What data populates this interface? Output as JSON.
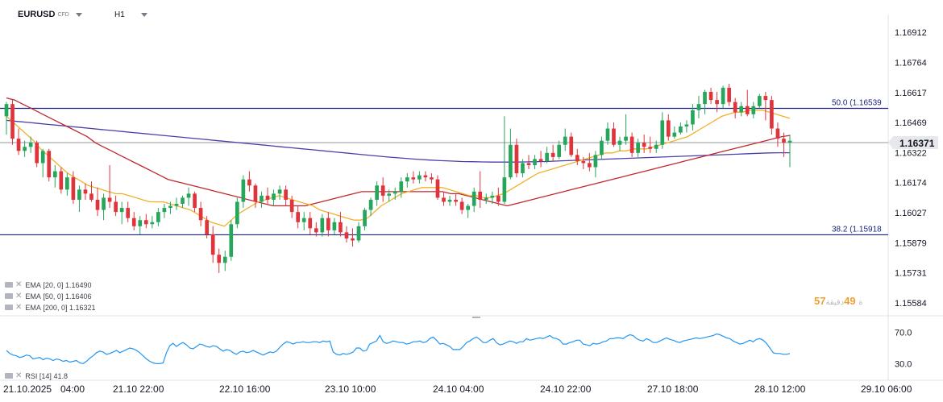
{
  "header": {
    "symbol": "EURUSD",
    "market": "CFD",
    "timeframe": "H1"
  },
  "indicators": [
    {
      "label": "EMA",
      "params": "[20, 0]",
      "value": "1.16490",
      "color": "#f2b02a"
    },
    {
      "label": "EMA",
      "params": "[50, 0]",
      "value": "1.16406",
      "color": "#c0282f"
    },
    {
      "label": "EMA",
      "params": "[200, 0]",
      "value": "1.16321",
      "color": "#4a3fa8"
    }
  ],
  "rsi": {
    "label": "RSI",
    "params": "[14]",
    "value": "41.8",
    "levels": [
      "70.0",
      "30.0"
    ],
    "color": "#2196f3",
    "values": [
      47,
      43,
      41,
      40,
      38,
      39,
      41,
      40,
      36,
      37,
      38,
      35,
      37,
      36,
      34,
      36,
      35,
      33,
      34,
      32,
      33,
      34,
      31,
      30,
      33,
      37,
      40,
      44,
      46,
      45,
      42,
      43,
      45,
      47,
      44,
      46,
      48,
      50,
      49,
      47,
      44,
      40,
      36,
      33,
      31,
      30,
      30,
      31,
      44,
      53,
      56,
      52,
      55,
      57,
      54,
      50,
      49,
      52,
      55,
      54,
      52,
      51,
      53,
      52,
      49,
      46,
      48,
      47,
      44,
      42,
      45,
      46,
      44,
      45,
      47,
      45,
      43,
      41,
      43,
      45,
      44,
      46,
      51,
      55,
      58,
      57,
      55,
      57,
      57,
      58,
      57,
      57,
      58,
      58,
      57,
      59,
      58,
      59,
      45,
      42,
      41,
      43,
      42,
      43,
      45,
      50,
      50,
      46,
      47,
      55,
      57,
      59,
      66,
      58,
      56,
      57,
      59,
      58,
      57,
      57,
      55,
      56,
      58,
      58,
      59,
      57,
      58,
      62,
      64,
      60,
      55,
      56,
      54,
      52,
      48,
      48,
      48,
      52,
      57,
      59,
      62,
      64,
      61,
      57,
      57,
      60,
      62,
      57,
      54,
      55,
      57,
      59,
      58,
      56,
      58,
      58,
      62,
      60,
      61,
      62,
      63,
      62,
      64,
      66,
      63,
      62,
      60,
      55,
      55,
      57,
      58,
      60,
      60,
      55,
      54,
      53,
      56,
      55,
      56,
      58,
      59,
      62,
      62,
      63,
      63,
      62,
      65,
      67,
      66,
      62,
      60,
      59,
      62,
      60,
      57,
      57,
      59,
      61,
      63,
      61,
      60,
      58,
      57,
      59,
      60,
      61,
      62,
      63,
      62,
      63,
      64,
      65,
      66,
      68,
      67,
      65,
      63,
      62,
      59,
      57,
      55,
      56,
      58,
      60,
      58,
      61,
      62,
      60,
      56,
      50,
      44,
      43,
      43,
      42,
      42,
      43
    ]
  },
  "price_scale": [
    "1.16912",
    "1.16764",
    "1.16617",
    "1.16469",
    "1.16322",
    "1.16174",
    "1.16027",
    "1.15879",
    "1.15731",
    "1.15584"
  ],
  "current_price": "1.16371",
  "fib_levels": [
    {
      "label": "50.0 (1.16539",
      "price": 1.16539
    },
    {
      "label": "38.2 (1.15918",
      "price": 1.15918
    }
  ],
  "session_text": {
    "prefix": "57",
    "mid": "ة",
    "minutes": "49",
    "suffix": "دقيقة"
  },
  "time_axis": [
    "21.10.2025",
    "04:00",
    "21.10 22:00",
    "22.10 16:00",
    "23.10 10:00",
    "24.10 04:00",
    "24.10 22:00",
    "27.10 18:00",
    "28.10 12:00",
    "29.10 06:00"
  ],
  "chart_data": {
    "type": "candlestick",
    "symbol": "EURUSD",
    "timeframe": "H1",
    "ylim": [
      1.1552,
      1.17
    ],
    "candles": [
      [
        1.165,
        1.1657,
        1.1641,
        1.1656
      ],
      [
        1.1656,
        1.1658,
        1.1636,
        1.1639
      ],
      [
        1.1639,
        1.1644,
        1.1631,
        1.1633
      ],
      [
        1.1633,
        1.1638,
        1.163,
        1.1635
      ],
      [
        1.1635,
        1.164,
        1.1632,
        1.1637
      ],
      [
        1.1637,
        1.1638,
        1.1625,
        1.1627
      ],
      [
        1.1627,
        1.1634,
        1.162,
        1.1633
      ],
      [
        1.1633,
        1.1634,
        1.1618,
        1.162
      ],
      [
        1.162,
        1.1626,
        1.1615,
        1.1623
      ],
      [
        1.1623,
        1.1625,
        1.1612,
        1.1614
      ],
      [
        1.1614,
        1.1622,
        1.1611,
        1.162
      ],
      [
        1.162,
        1.1623,
        1.1607,
        1.1609
      ],
      [
        1.1609,
        1.1616,
        1.1603,
        1.1614
      ],
      [
        1.1614,
        1.1617,
        1.1609,
        1.1612
      ],
      [
        1.1612,
        1.1618,
        1.1608,
        1.1609
      ],
      [
        1.1609,
        1.1615,
        1.1601,
        1.1604
      ],
      [
        1.1604,
        1.1612,
        1.1599,
        1.161
      ],
      [
        1.161,
        1.1626,
        1.1605,
        1.1608
      ],
      [
        1.1608,
        1.1611,
        1.1601,
        1.1603
      ],
      [
        1.1603,
        1.1608,
        1.1597,
        1.1605
      ],
      [
        1.1605,
        1.1608,
        1.1598,
        1.16
      ],
      [
        1.16,
        1.1603,
        1.1594,
        1.1596
      ],
      [
        1.1596,
        1.1601,
        1.1592,
        1.1599
      ],
      [
        1.1599,
        1.1602,
        1.1595,
        1.1597
      ],
      [
        1.1597,
        1.1601,
        1.1595,
        1.1598
      ],
      [
        1.1598,
        1.1605,
        1.1596,
        1.1603
      ],
      [
        1.1603,
        1.1607,
        1.16,
        1.1605
      ],
      [
        1.1605,
        1.1608,
        1.1602,
        1.1606
      ],
      [
        1.1606,
        1.161,
        1.1604,
        1.1607
      ],
      [
        1.1607,
        1.1611,
        1.1605,
        1.161
      ],
      [
        1.161,
        1.1615,
        1.1606,
        1.1612
      ],
      [
        1.1612,
        1.1613,
        1.1603,
        1.1605
      ],
      [
        1.1605,
        1.1608,
        1.1596,
        1.1599
      ],
      [
        1.1599,
        1.1601,
        1.159,
        1.1592
      ],
      [
        1.1592,
        1.1596,
        1.1578,
        1.1582
      ],
      [
        1.1582,
        1.1585,
        1.1573,
        1.1578
      ],
      [
        1.1578,
        1.1584,
        1.1574,
        1.1581
      ],
      [
        1.1581,
        1.1599,
        1.1579,
        1.1597
      ],
      [
        1.1597,
        1.161,
        1.1595,
        1.1608
      ],
      [
        1.1608,
        1.1621,
        1.1605,
        1.1619
      ],
      [
        1.1619,
        1.1623,
        1.1613,
        1.1616
      ],
      [
        1.1616,
        1.1617,
        1.1605,
        1.1608
      ],
      [
        1.1608,
        1.1613,
        1.1605,
        1.1611
      ],
      [
        1.1611,
        1.1615,
        1.1607,
        1.1609
      ],
      [
        1.1609,
        1.1614,
        1.1606,
        1.1612
      ],
      [
        1.1612,
        1.1616,
        1.1609,
        1.1614
      ],
      [
        1.1614,
        1.1616,
        1.1606,
        1.1609
      ],
      [
        1.1609,
        1.1611,
        1.16,
        1.1603
      ],
      [
        1.1603,
        1.1606,
        1.1595,
        1.1598
      ],
      [
        1.1598,
        1.1603,
        1.1594,
        1.16
      ],
      [
        1.16,
        1.1603,
        1.1592,
        1.1595
      ],
      [
        1.1595,
        1.1598,
        1.1591,
        1.1593
      ],
      [
        1.1593,
        1.1602,
        1.1591,
        1.16
      ],
      [
        1.16,
        1.1603,
        1.1591,
        1.1594
      ],
      [
        1.1594,
        1.16,
        1.1592,
        1.1598
      ],
      [
        1.1598,
        1.1603,
        1.1591,
        1.1593
      ],
      [
        1.1593,
        1.1596,
        1.1588,
        1.159
      ],
      [
        1.159,
        1.1595,
        1.1586,
        1.1589
      ],
      [
        1.1589,
        1.1598,
        1.1588,
        1.1596
      ],
      [
        1.1596,
        1.1605,
        1.1594,
        1.1604
      ],
      [
        1.1604,
        1.161,
        1.1601,
        1.1609
      ],
      [
        1.1609,
        1.1618,
        1.1606,
        1.1616
      ],
      [
        1.1616,
        1.162,
        1.1608,
        1.1611
      ],
      [
        1.1611,
        1.1614,
        1.1608,
        1.1612
      ],
      [
        1.1612,
        1.1615,
        1.1609,
        1.1613
      ],
      [
        1.1613,
        1.162,
        1.161,
        1.1618
      ],
      [
        1.1618,
        1.1622,
        1.1615,
        1.162
      ],
      [
        1.162,
        1.1623,
        1.1617,
        1.1619
      ],
      [
        1.1619,
        1.1623,
        1.1617,
        1.1621
      ],
      [
        1.1621,
        1.1623,
        1.1618,
        1.162
      ],
      [
        1.162,
        1.1622,
        1.1617,
        1.1619
      ],
      [
        1.1619,
        1.1621,
        1.1609,
        1.161
      ],
      [
        1.161,
        1.1613,
        1.1606,
        1.1608
      ],
      [
        1.1608,
        1.1611,
        1.1606,
        1.1609
      ],
      [
        1.1609,
        1.1612,
        1.1606,
        1.1608
      ],
      [
        1.1608,
        1.161,
        1.1602,
        1.1604
      ],
      [
        1.1604,
        1.1607,
        1.16,
        1.1606
      ],
      [
        1.1606,
        1.1615,
        1.1603,
        1.1613
      ],
      [
        1.1613,
        1.1623,
        1.1605,
        1.1609
      ],
      [
        1.1609,
        1.1612,
        1.1607,
        1.161
      ],
      [
        1.161,
        1.1613,
        1.1607,
        1.1611
      ],
      [
        1.1611,
        1.1615,
        1.1606,
        1.1608
      ],
      [
        1.1608,
        1.165,
        1.1607,
        1.162
      ],
      [
        1.162,
        1.1644,
        1.1619,
        1.1636
      ],
      [
        1.1636,
        1.1639,
        1.162,
        1.1622
      ],
      [
        1.1622,
        1.1629,
        1.162,
        1.1627
      ],
      [
        1.1627,
        1.1631,
        1.1624,
        1.1626
      ],
      [
        1.1626,
        1.1631,
        1.1624,
        1.1629
      ],
      [
        1.1629,
        1.1633,
        1.1625,
        1.1628
      ],
      [
        1.1628,
        1.1635,
        1.1627,
        1.1632
      ],
      [
        1.1632,
        1.1636,
        1.1628,
        1.163
      ],
      [
        1.163,
        1.1638,
        1.1629,
        1.1636
      ],
      [
        1.1636,
        1.1644,
        1.1633,
        1.164
      ],
      [
        1.164,
        1.1642,
        1.163,
        1.1631
      ],
      [
        1.1631,
        1.1634,
        1.1626,
        1.1628
      ],
      [
        1.1628,
        1.163,
        1.1624,
        1.1627
      ],
      [
        1.1627,
        1.1632,
        1.1623,
        1.1625
      ],
      [
        1.1625,
        1.1633,
        1.162,
        1.1631
      ],
      [
        1.1631,
        1.164,
        1.1629,
        1.1638
      ],
      [
        1.1638,
        1.1647,
        1.1636,
        1.1644
      ],
      [
        1.1644,
        1.1647,
        1.1635,
        1.1636
      ],
      [
        1.1636,
        1.164,
        1.1633,
        1.1638
      ],
      [
        1.1638,
        1.1651,
        1.1636,
        1.164
      ],
      [
        1.164,
        1.1642,
        1.163,
        1.1632
      ],
      [
        1.1632,
        1.1639,
        1.163,
        1.1637
      ],
      [
        1.1637,
        1.1641,
        1.1632,
        1.1635
      ],
      [
        1.1635,
        1.164,
        1.1632,
        1.1634
      ],
      [
        1.1634,
        1.1638,
        1.1632,
        1.1636
      ],
      [
        1.1636,
        1.1652,
        1.1634,
        1.1648
      ],
      [
        1.1648,
        1.1651,
        1.1638,
        1.164
      ],
      [
        1.164,
        1.1645,
        1.1639,
        1.1642
      ],
      [
        1.1642,
        1.1647,
        1.1641,
        1.1645
      ],
      [
        1.1645,
        1.1648,
        1.1642,
        1.1646
      ],
      [
        1.1646,
        1.1656,
        1.1643,
        1.1653
      ],
      [
        1.1653,
        1.166,
        1.1649,
        1.1656
      ],
      [
        1.1656,
        1.1663,
        1.1651,
        1.1662
      ],
      [
        1.1662,
        1.1664,
        1.1656,
        1.1658
      ],
      [
        1.1658,
        1.1662,
        1.1652,
        1.1656
      ],
      [
        1.1656,
        1.1665,
        1.1654,
        1.1664
      ],
      [
        1.1664,
        1.1666,
        1.1655,
        1.1657
      ],
      [
        1.1657,
        1.1659,
        1.1649,
        1.1652
      ],
      [
        1.1652,
        1.1657,
        1.165,
        1.1655
      ],
      [
        1.1655,
        1.1663,
        1.165,
        1.1651
      ],
      [
        1.1651,
        1.1657,
        1.1649,
        1.1655
      ],
      [
        1.1655,
        1.1661,
        1.1654,
        1.166
      ],
      [
        1.166,
        1.1662,
        1.1648,
        1.1658
      ],
      [
        1.1658,
        1.166,
        1.1641,
        1.1644
      ],
      [
        1.1644,
        1.1647,
        1.1635,
        1.1639
      ],
      [
        1.1639,
        1.1642,
        1.163,
        1.1637
      ],
      [
        1.1637,
        1.1641,
        1.1625,
        1.1638
      ]
    ],
    "ema20": [
      1.165,
      1.1647,
      1.1644,
      1.1641,
      1.1638,
      1.1634,
      1.1631,
      1.1628,
      1.1625,
      1.1622,
      1.162,
      1.1618,
      1.1616,
      1.1615,
      1.1614,
      1.1613,
      1.1612,
      1.1612,
      1.1611,
      1.161,
      1.1609,
      1.1608,
      1.1608,
      1.1608,
      1.1607,
      1.1606,
      1.1605,
      1.1604,
      1.1602,
      1.16,
      1.1598,
      1.1597,
      1.1596,
      1.1599,
      1.1602,
      1.1604,
      1.1606,
      1.1608,
      1.1609,
      1.161,
      1.1611,
      1.161,
      1.1609,
      1.1608,
      1.1607,
      1.1606,
      1.1604,
      1.1603,
      1.1602,
      1.1601,
      1.16,
      1.1599,
      1.1599,
      1.16,
      1.1603,
      1.1606,
      1.1608,
      1.161,
      1.1612,
      1.1613,
      1.1614,
      1.1615,
      1.1615,
      1.1615,
      1.1615,
      1.1614,
      1.1613,
      1.1612,
      1.1611,
      1.1611,
      1.161,
      1.161,
      1.1611,
      1.1612,
      1.1614,
      1.1616,
      1.1618,
      1.162,
      1.1622,
      1.1623,
      1.1624,
      1.1625,
      1.1626,
      1.1627,
      1.1628,
      1.1629,
      1.163,
      1.1631,
      1.1632,
      1.1632,
      1.1633,
      1.1633,
      1.1634,
      1.1634,
      1.1634,
      1.1635,
      1.1636,
      1.1637,
      1.1638,
      1.1639,
      1.164,
      1.1642,
      1.1644,
      1.1646,
      1.1648,
      1.165,
      1.1651,
      1.1652,
      1.1652,
      1.1653,
      1.1653,
      1.1653,
      1.1652,
      1.1651,
      1.165,
      1.1649
    ],
    "ema50": [
      1.1659,
      1.1658,
      1.1656,
      1.1654,
      1.1652,
      1.165,
      1.1648,
      1.1646,
      1.1644,
      1.1642,
      1.164,
      1.1637,
      1.1635,
      1.1633,
      1.1631,
      1.1629,
      1.1627,
      1.1625,
      1.1623,
      1.1621,
      1.1619,
      1.1618,
      1.1617,
      1.1616,
      1.1615,
      1.1614,
      1.1613,
      1.1612,
      1.1611,
      1.161,
      1.1609,
      1.1608,
      1.1607,
      1.1606,
      1.1606,
      1.1606,
      1.1606,
      1.1606,
      1.1607,
      1.1608,
      1.1609,
      1.161,
      1.1611,
      1.1612,
      1.1613,
      1.1613,
      1.1613,
      1.1613,
      1.1613,
      1.1613,
      1.1613,
      1.1613,
      1.1613,
      1.1613,
      1.1613,
      1.1612,
      1.1612,
      1.1611,
      1.161,
      1.1609,
      1.1608,
      1.1607,
      1.1606,
      1.1607,
      1.1608,
      1.1609,
      1.161,
      1.1611,
      1.1612,
      1.1613,
      1.1614,
      1.1615,
      1.1616,
      1.1617,
      1.1618,
      1.1619,
      1.162,
      1.1621,
      1.1622,
      1.1623,
      1.1624,
      1.1625,
      1.1626,
      1.1627,
      1.1628,
      1.1629,
      1.163,
      1.1631,
      1.1632,
      1.1633,
      1.1634,
      1.1635,
      1.1636,
      1.1637,
      1.1638,
      1.1639,
      1.164,
      1.16406
    ],
    "ema200": [
      1.1648,
      1.16475,
      1.1647,
      1.16465,
      1.1646,
      1.16455,
      1.1645,
      1.16445,
      1.1644,
      1.16435,
      1.1643,
      1.16425,
      1.1642,
      1.16415,
      1.1641,
      1.16405,
      1.164,
      1.16395,
      1.1639,
      1.16385,
      1.1638,
      1.16375,
      1.1637,
      1.16365,
      1.1636,
      1.16355,
      1.1635,
      1.16345,
      1.1634,
      1.16335,
      1.1633,
      1.16325,
      1.1632,
      1.16315,
      1.1631,
      1.16305,
      1.163,
      1.16296,
      1.16292,
      1.16288,
      1.16285,
      1.16282,
      1.1628,
      1.16278,
      1.16277,
      1.16276,
      1.16275,
      1.16275,
      1.16275,
      1.16276,
      1.16277,
      1.16278,
      1.1628,
      1.16282,
      1.16284,
      1.16286,
      1.16288,
      1.1629,
      1.16292,
      1.16294,
      1.16296,
      1.16298,
      1.163,
      1.16302,
      1.16304,
      1.16306,
      1.16308,
      1.1631,
      1.16312,
      1.16314,
      1.16316,
      1.16318,
      1.1632,
      1.16321,
      1.16321
    ]
  }
}
